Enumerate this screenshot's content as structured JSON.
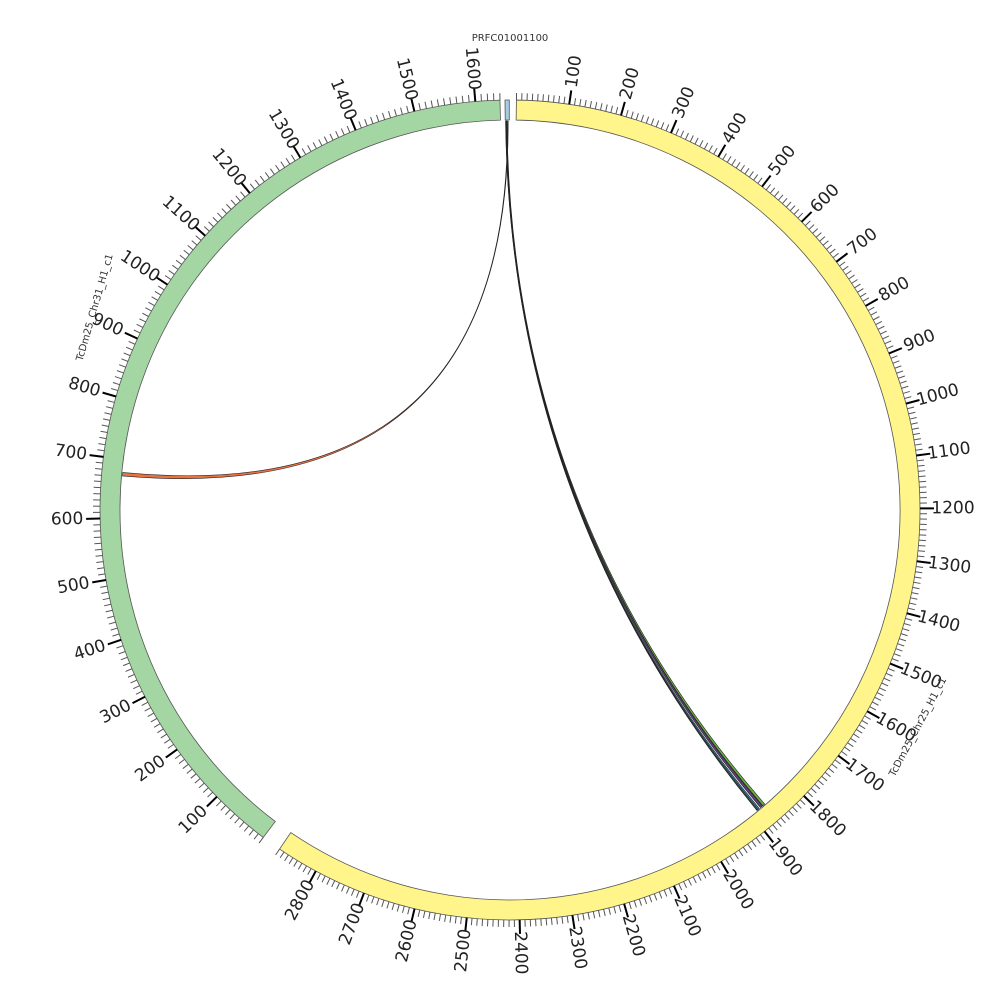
{
  "sequences": [
    {
      "id": "chr31",
      "name": "TcDm25_Chr31_H1_c1",
      "color": "#a3d6a3",
      "length": 1640,
      "major_tick_step": 100,
      "major_tick_first": 100,
      "major_tick_last": 1600
    },
    {
      "id": "prfc",
      "name": "PRFC01001100",
      "color": "#a9cce3",
      "length": 25
    },
    {
      "id": "chr25",
      "name": "TcDm25_Chr25_H1_c1",
      "color": "#fff58a",
      "length": 2880,
      "major_tick_step": 100,
      "major_tick_first": 100,
      "major_tick_last": 2800
    }
  ],
  "links": [
    {
      "source": "prfc",
      "source_range": [
        14,
        18
      ],
      "target": "chr31",
      "target_range": [
        672,
        678
      ],
      "color": "#e8632c"
    },
    {
      "source": "prfc",
      "source_range": [
        2,
        6
      ],
      "target": "chr25",
      "target_range": [
        1880,
        1886
      ],
      "color": "#2e6f9e"
    },
    {
      "source": "prfc",
      "source_range": [
        6,
        9
      ],
      "target": "chr25",
      "target_range": [
        1872,
        1877
      ],
      "color": "#4c2a6e"
    },
    {
      "source": "prfc",
      "source_range": [
        8,
        11
      ],
      "target": "chr25",
      "target_range": [
        1866,
        1871
      ],
      "color": "#56a82a"
    },
    {
      "source": "prfc",
      "source_range": [
        3,
        5
      ],
      "target": "chr25",
      "target_range": [
        1883,
        1885
      ],
      "color": "#3a9a8a"
    }
  ]
}
